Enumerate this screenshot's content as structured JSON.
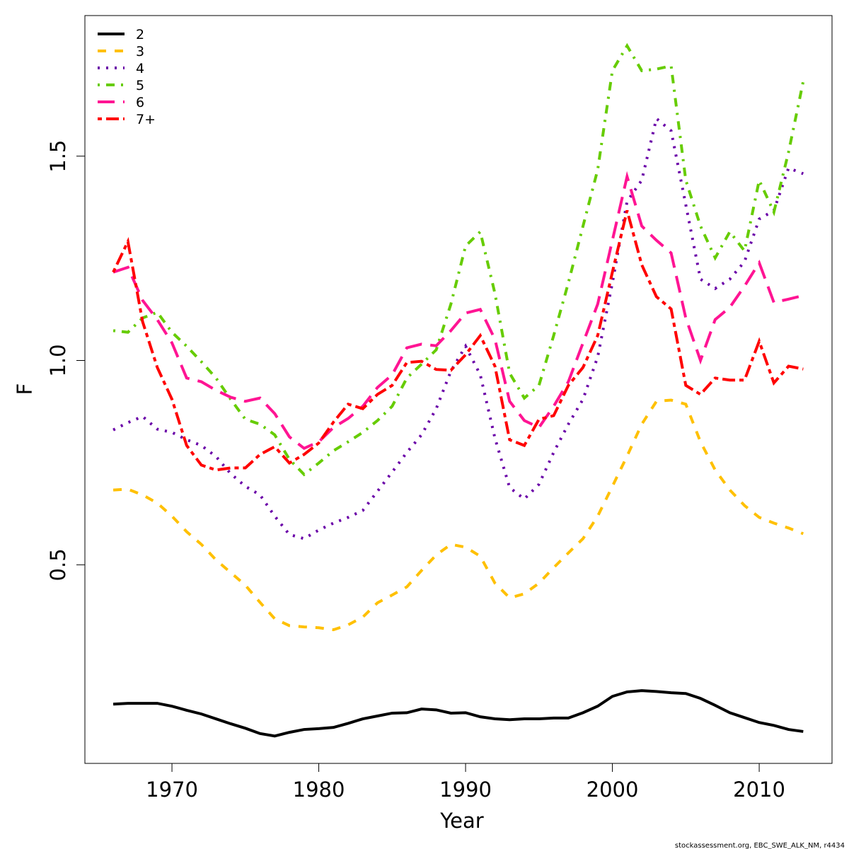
{
  "chart_data": {
    "type": "line",
    "x_label": "Year",
    "y_label": "F",
    "footer": "stockassessment.org, EBC_SWE_ALK_NM, r4434",
    "x": [
      1966,
      1967,
      1968,
      1969,
      1970,
      1971,
      1972,
      1973,
      1974,
      1975,
      1976,
      1977,
      1978,
      1979,
      1980,
      1981,
      1982,
      1983,
      1984,
      1985,
      1986,
      1987,
      1988,
      1989,
      1990,
      1991,
      1992,
      1993,
      1994,
      1995,
      1996,
      1997,
      1998,
      1999,
      2000,
      2001,
      2002,
      2003,
      2004,
      2005,
      2006,
      2007,
      2008,
      2009,
      2010,
      2011,
      2012,
      2013
    ],
    "xlim": [
      1964.07,
      2014.96
    ],
    "xticks": [
      1970,
      1980,
      1990,
      2000,
      2010
    ],
    "ylim": [
      0.014,
      1.844
    ],
    "yticks": [
      0.5,
      {
        "value": 1.0,
        "label": "1.0"
      },
      1.5
    ],
    "legend": "top-left",
    "grid": false,
    "series": [
      {
        "name": "2",
        "color": "#000000",
        "style": "solid",
        "values": [
          0.159,
          0.161,
          0.161,
          0.161,
          0.154,
          0.144,
          0.135,
          0.123,
          0.111,
          0.1,
          0.087,
          0.081,
          0.09,
          0.097,
          0.099,
          0.102,
          0.112,
          0.123,
          0.13,
          0.137,
          0.138,
          0.147,
          0.145,
          0.137,
          0.138,
          0.128,
          0.123,
          0.121,
          0.123,
          0.123,
          0.125,
          0.125,
          0.138,
          0.154,
          0.178,
          0.189,
          0.192,
          0.19,
          0.187,
          0.185,
          0.173,
          0.156,
          0.138,
          0.126,
          0.114,
          0.107,
          0.097,
          0.092
        ]
      },
      {
        "name": "3",
        "color": "#FFC000",
        "style": "dashed",
        "values": [
          0.683,
          0.685,
          0.671,
          0.651,
          0.619,
          0.581,
          0.55,
          0.512,
          0.481,
          0.45,
          0.408,
          0.368,
          0.351,
          0.348,
          0.346,
          0.341,
          0.353,
          0.372,
          0.407,
          0.426,
          0.446,
          0.486,
          0.524,
          0.55,
          0.543,
          0.521,
          0.455,
          0.419,
          0.429,
          0.455,
          0.493,
          0.529,
          0.564,
          0.619,
          0.692,
          0.766,
          0.844,
          0.9,
          0.903,
          0.893,
          0.801,
          0.732,
          0.683,
          0.645,
          0.616,
          0.602,
          0.59,
          0.576
        ]
      },
      {
        "name": "4",
        "color": "#6A00A8",
        "style": "dotted",
        "values": [
          0.83,
          0.848,
          0.863,
          0.832,
          0.824,
          0.806,
          0.792,
          0.765,
          0.723,
          0.692,
          0.671,
          0.619,
          0.574,
          0.564,
          0.585,
          0.602,
          0.616,
          0.633,
          0.68,
          0.727,
          0.775,
          0.818,
          0.882,
          0.974,
          1.035,
          0.965,
          0.81,
          0.689,
          0.661,
          0.697,
          0.775,
          0.844,
          0.905,
          1.009,
          1.19,
          1.389,
          1.441,
          1.592,
          1.562,
          1.381,
          1.199,
          1.176,
          1.199,
          1.242,
          1.346,
          1.367,
          1.471,
          1.457
        ]
      },
      {
        "name": "5",
        "color": "#66CC00",
        "style": "dotdash",
        "values": [
          1.073,
          1.069,
          1.104,
          1.118,
          1.069,
          1.035,
          0.997,
          0.957,
          0.905,
          0.856,
          0.844,
          0.818,
          0.758,
          0.721,
          0.749,
          0.779,
          0.801,
          0.824,
          0.853,
          0.888,
          0.957,
          0.991,
          1.026,
          1.138,
          1.28,
          1.315,
          1.164,
          0.969,
          0.908,
          0.939,
          1.061,
          1.19,
          1.329,
          1.467,
          1.709,
          1.77,
          1.709,
          1.713,
          1.721,
          1.441,
          1.329,
          1.251,
          1.315,
          1.268,
          1.441,
          1.363,
          1.51,
          1.683
        ]
      },
      {
        "name": "6",
        "color": "#FF1493",
        "style": "longdash",
        "values": [
          1.216,
          1.228,
          1.147,
          1.1,
          1.043,
          0.957,
          0.948,
          0.927,
          0.91,
          0.9,
          0.908,
          0.87,
          0.813,
          0.785,
          0.801,
          0.836,
          0.858,
          0.888,
          0.934,
          0.965,
          1.031,
          1.04,
          1.036,
          1.073,
          1.116,
          1.125,
          1.052,
          0.9,
          0.853,
          0.836,
          0.888,
          0.948,
          1.043,
          1.138,
          1.294,
          1.45,
          1.329,
          1.294,
          1.263,
          1.104,
          1.0,
          1.1,
          1.13,
          1.182,
          1.239,
          1.142,
          1.15,
          1.159
        ]
      },
      {
        "name": "7+",
        "color": "#FF0000",
        "style": "twodash",
        "values": [
          1.216,
          1.291,
          1.095,
          0.983,
          0.905,
          0.792,
          0.744,
          0.732,
          0.737,
          0.737,
          0.77,
          0.789,
          0.749,
          0.77,
          0.798,
          0.849,
          0.893,
          0.882,
          0.917,
          0.939,
          0.995,
          0.998,
          0.978,
          0.976,
          1.014,
          1.061,
          0.986,
          0.806,
          0.792,
          0.856,
          0.865,
          0.939,
          0.983,
          1.061,
          1.216,
          1.367,
          1.234,
          1.156,
          1.126,
          0.939,
          0.917,
          0.957,
          0.952,
          0.952,
          1.047,
          0.945,
          0.986,
          0.979
        ]
      }
    ]
  }
}
